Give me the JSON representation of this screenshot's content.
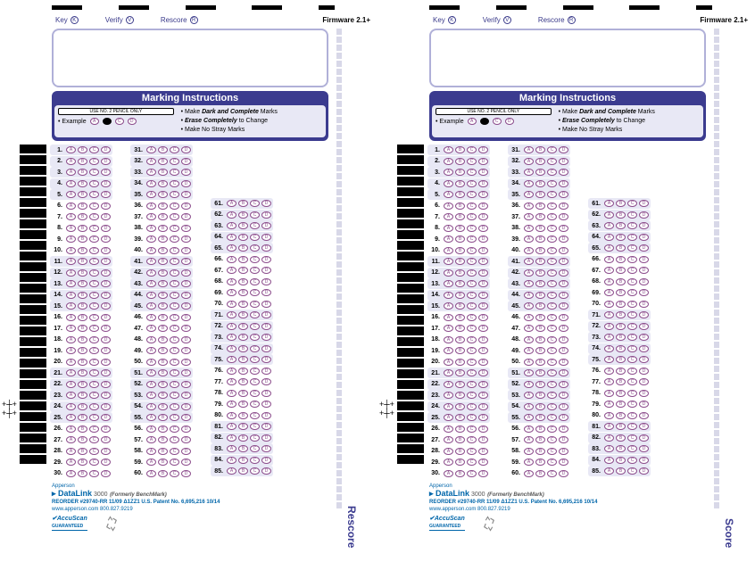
{
  "firmware_text": "Firmware 2.1+",
  "header_buttons": [
    {
      "label": "Key",
      "key": "K"
    },
    {
      "label": "Verify",
      "key": "V"
    },
    {
      "label": "Rescore",
      "key": "R"
    }
  ],
  "instructions_title": "Marking Instructions",
  "pencil_text": "USE NO. 2 PENCIL ONLY",
  "example_label": "Example",
  "instruction_lines": [
    "Make <b><i>Dark and Complete</i></b> Marks",
    "<b><i>Erase Completely</i></b> to Change",
    "Make No Stray Marks"
  ],
  "answer_options": [
    "A",
    "B",
    "C",
    "D"
  ],
  "question_cols": [
    {
      "start": 1,
      "end": 30
    },
    {
      "start": 31,
      "end": 60
    },
    {
      "start": 61,
      "end": 85
    }
  ],
  "shaded_questions": [
    1,
    2,
    3,
    4,
    5,
    11,
    12,
    13,
    14,
    15,
    21,
    22,
    23,
    24,
    25,
    31,
    32,
    33,
    34,
    35,
    41,
    42,
    43,
    44,
    45,
    51,
    52,
    53,
    54,
    55,
    61,
    62,
    63,
    64,
    65,
    71,
    72,
    73,
    74,
    75,
    81,
    82,
    83,
    84,
    85
  ],
  "brand_apperson": "Apperson",
  "brand_name": "DataLink",
  "brand_num": "3000",
  "brand_formerly": "(Formerly BenchMark)",
  "reorder_line": "REORDER #29740-RR 11/09 Δ1ZZ1   U.S. Patent No. 6,695,216    10/14",
  "website_line": "www.apperson.com 800.827.9219",
  "accuscan_label": "AccuScan",
  "accuscan_sub": "GUARANTEED",
  "score_labels": [
    "Rescore",
    "Score"
  ],
  "example_bubbles": [
    {
      "letter": "A",
      "filled": false
    },
    {
      "letter": "B",
      "filled": true
    },
    {
      "letter": "C",
      "filled": false
    },
    {
      "letter": "D",
      "filled": false
    }
  ],
  "colors": {
    "header_blue": "#3b3b8f",
    "bubble_border": "#8a4a8a",
    "shade": "#e8e8f5",
    "link_blue": "#0066aa"
  }
}
